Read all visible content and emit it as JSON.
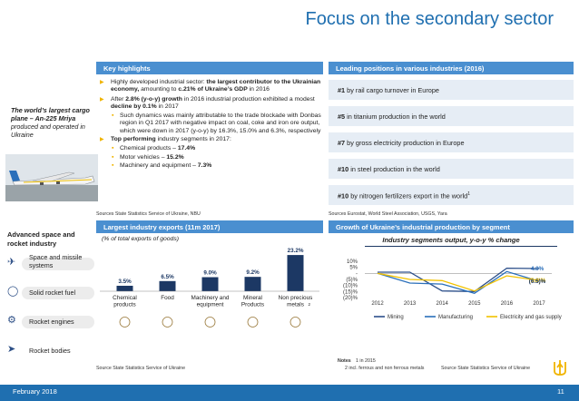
{
  "page": {
    "title": "Focus on the secondary sector",
    "footer_date": "February 2018",
    "page_number": "11"
  },
  "left_panel": {
    "plane_caption_bold": "The world’s largest cargo plane – An-225 Mriya",
    "plane_caption_rest": " produced and operated in Ukraine",
    "space_title": "Advanced space and rocket industry",
    "space_items": [
      {
        "icon": "satellite-icon",
        "label": "Space and missile systems"
      },
      {
        "icon": "fuel-tank-icon",
        "label": "Solid rocket fuel"
      },
      {
        "icon": "rocket-engine-icon",
        "label": "Rocket engines"
      },
      {
        "icon": "rocket-icon",
        "label": "Rocket bodies"
      }
    ]
  },
  "highlights": {
    "header": "Key highlights",
    "b1_pre": "Highly developed industrial sector: ",
    "b1_bold": "the largest contributor to the Ukrainian economy,",
    "b1_mid": " amounting to ",
    "b1_bold2": "c.21% of Ukraine’s GDP",
    "b1_post": " in 2016",
    "b2_pre": "After ",
    "b2_bold": "2.8% (y-o-y) growth",
    "b2_mid": " in 2016 industrial production exhibited a modest ",
    "b2_bold2": "decline by 0.1%",
    "b2_post": " in 2017",
    "b2_sub": "Such dynamics was mainly attributable to the trade blockade with Donbas region in Q1 2017 with negative impact on coal, coke and iron ore output, which were down in 2017 (y-o-y) by 16.3%, 15.0% and 6.3%, respectively",
    "b3_bold": "Top performing",
    "b3_post": " industry segments in 2017:",
    "b3_subs": [
      {
        "label": "Chemical products – ",
        "value": "17.4%"
      },
      {
        "label": "Motor vehicles – ",
        "value": "15.2%"
      },
      {
        "label": "Machinery and equipment – ",
        "value": "7.3%"
      }
    ],
    "source": "Sources State Statistics Service of Ukraine, NBU"
  },
  "positions": {
    "header": "Leading positions in various industries (2016)",
    "items": [
      {
        "rank": "#1",
        "text": " by rail cargo turnover in Europe"
      },
      {
        "rank": "#5",
        "text": " in titanium production in the world"
      },
      {
        "rank": "#7",
        "text": " by gross electricity production in Europe"
      },
      {
        "rank": "#10",
        "text": " in steel production in the world"
      },
      {
        "rank": "#10",
        "text": " by nitrogen fertilizers export in the world",
        "note": "1"
      }
    ],
    "source": "Sources Eurostat, World Steel Association, USGS, Yara"
  },
  "chart_data": [
    {
      "type": "bar",
      "header": "Largest industry exports (11m 2017)",
      "subtitle": "(% of total exports of goods)",
      "categories": [
        "Chemical products",
        "Food",
        "Machinery and equipment",
        "Mineral Products",
        "Non precious metals"
      ],
      "category_note": [
        "",
        "",
        "",
        "",
        "2"
      ],
      "values": [
        3.5,
        6.5,
        9.0,
        9.2,
        23.2
      ],
      "value_labels": [
        "3.5%",
        "6.5%",
        "9.0%",
        "9.2%",
        "23.2%"
      ],
      "bar_color": "#1c3864",
      "ylim": [
        0,
        25
      ],
      "icons": [
        "chemistry-icon",
        "food-basket-icon",
        "gear-icon",
        "mine-cart-icon",
        "metal-bars-icon"
      ],
      "source": "Source State Statistics Service of Ukraine"
    },
    {
      "type": "line",
      "header": "Growth of Ukraine’s industrial production by segment",
      "title": "Industry segments output, y-o-y % change",
      "x": [
        2012,
        2013,
        2014,
        2015,
        2016,
        2017
      ],
      "ylim": [
        -20,
        10
      ],
      "yticks": [
        10,
        5,
        0,
        -5,
        -10,
        -15,
        -20
      ],
      "ytick_labels": [
        "10%",
        "5%",
        "-",
        "(5)%",
        "(10)%",
        "(15)%",
        "(20)%"
      ],
      "series": [
        {
          "name": "Mining",
          "color": "#2c4f8a",
          "values": [
            1.0,
            1.0,
            -14.5,
            -15.0,
            4.3,
            4.0
          ]
        },
        {
          "name": "Manufacturing",
          "color": "#2a6fba",
          "values": [
            0.0,
            -8.0,
            -8.8,
            -16.5,
            1.5,
            -6.5
          ]
        },
        {
          "name": "Electricity and gas supply",
          "color": "#f2c200",
          "values": [
            0.0,
            -5.0,
            -6.0,
            -14.5,
            -2.0,
            -5.8
          ]
        }
      ],
      "end_labels": [
        {
          "text": "4.0%",
          "color": "#2a6fba",
          "y": 4.0
        },
        {
          "text": "(5.8)%",
          "color": "#f2c200",
          "y": -5.8
        },
        {
          "text": "(6.5)%",
          "color": "#1c3864",
          "y": -6.5
        }
      ],
      "notes_title": "Notes",
      "notes": [
        "1 in 2015",
        "2 incl. ferrous and non ferrous metals"
      ],
      "source": "Source State Statistics Service of Ukraine"
    }
  ]
}
